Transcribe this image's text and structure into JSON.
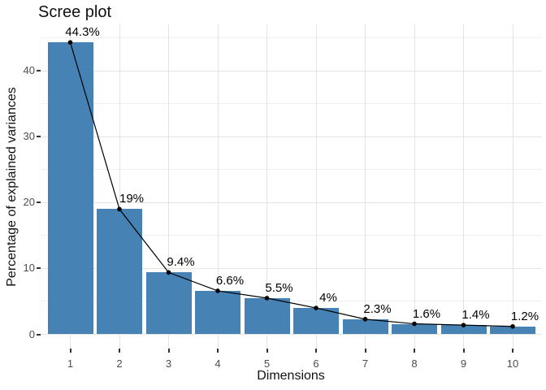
{
  "chart_data": {
    "type": "bar",
    "subtype": "scree-plot-with-line-overlay",
    "title": "Scree plot",
    "xlabel": "Dimensions",
    "ylabel": "Percentage of explained variances",
    "categories": [
      "1",
      "2",
      "3",
      "4",
      "5",
      "6",
      "7",
      "8",
      "9",
      "10"
    ],
    "values": [
      44.3,
      19,
      9.4,
      6.6,
      5.5,
      4,
      2.3,
      1.6,
      1.4,
      1.2
    ],
    "point_labels": [
      "44.3%",
      "19%",
      "9.4%",
      "6.6%",
      "5.5%",
      "4%",
      "2.3%",
      "1.6%",
      "1.4%",
      "1.2%"
    ],
    "y_ticks": [
      0,
      10,
      20,
      30,
      40
    ],
    "y_minor_gridlines": [
      5,
      15,
      25,
      35,
      45
    ],
    "ylim": [
      -2.2,
      46.9
    ],
    "grid": "on",
    "legend_position": "none",
    "bar_color": "#4682B4",
    "line_color": "#000000",
    "point_color": "#000000",
    "label_color": "#000000",
    "grid_major_color": "#E4E4E4",
    "grid_minor_color": "#F0F0F0",
    "tick_text_color": "#4D4D4D",
    "panel_background": "#FFFFFF"
  }
}
